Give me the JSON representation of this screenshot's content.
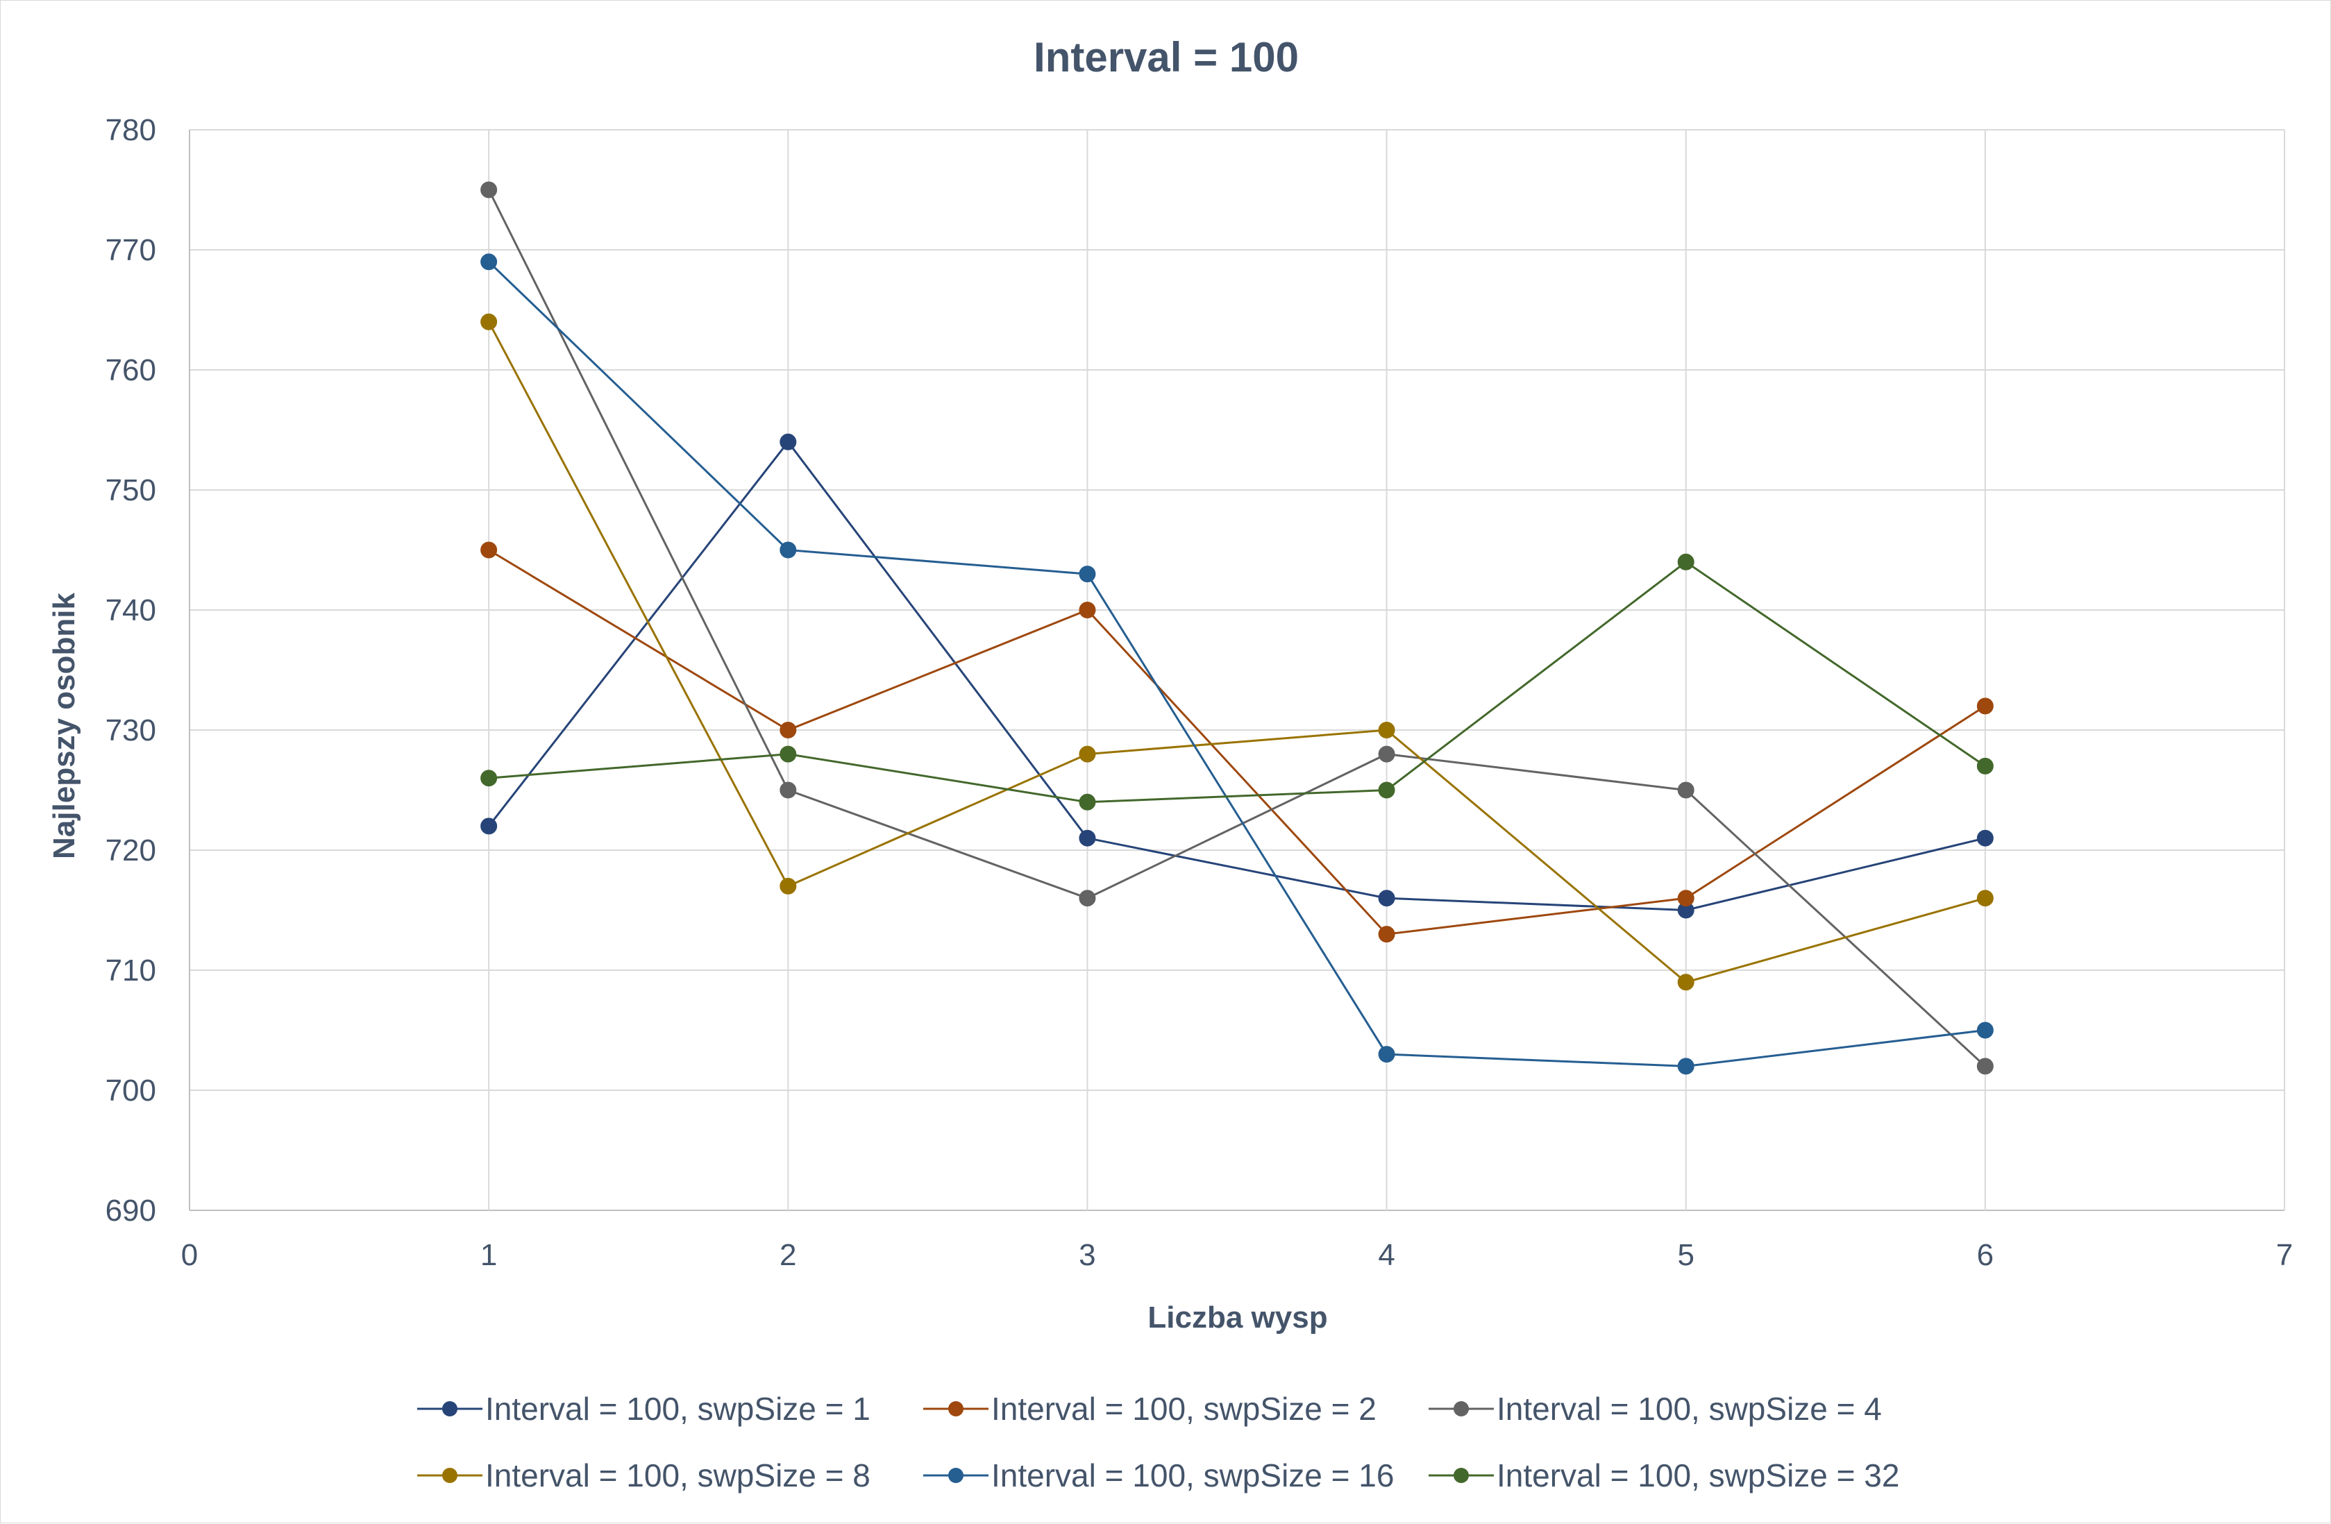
{
  "chart_data": {
    "type": "scatter",
    "title": "Interval = 100",
    "xlabel": "Liczba wysp",
    "ylabel": "Najlepszy osobnik",
    "xlim": [
      0,
      7
    ],
    "ylim": [
      690,
      780
    ],
    "x_ticks": [
      "0",
      "1",
      "2",
      "3",
      "4",
      "5",
      "6",
      "7"
    ],
    "y_ticks": [
      "690",
      "700",
      "710",
      "720",
      "730",
      "740",
      "750",
      "760",
      "770",
      "780"
    ],
    "grid": true,
    "legend_position": "bottom",
    "x": [
      1,
      2,
      3,
      4,
      5,
      6
    ],
    "series": [
      {
        "name": "Interval = 100, swpSize = 1",
        "color": "#264478",
        "values": [
          722,
          754,
          721,
          716,
          715,
          721
        ]
      },
      {
        "name": "Interval = 100, swpSize = 2",
        "color": "#9e480e",
        "values": [
          745,
          730,
          740,
          713,
          716,
          732
        ]
      },
      {
        "name": "Interval = 100, swpSize = 4",
        "color": "#636363",
        "values": [
          775,
          725,
          716,
          728,
          725,
          702
        ]
      },
      {
        "name": "Interval = 100, swpSize = 8",
        "color": "#997300",
        "values": [
          764,
          717,
          728,
          730,
          709,
          716
        ]
      },
      {
        "name": "Interval = 100, swpSize = 16",
        "color": "#255e91",
        "values": [
          769,
          745,
          743,
          703,
          702,
          705
        ]
      },
      {
        "name": "Interval = 100, swpSize = 32",
        "color": "#43682b",
        "values": [
          726,
          728,
          724,
          725,
          744,
          727
        ]
      }
    ]
  }
}
